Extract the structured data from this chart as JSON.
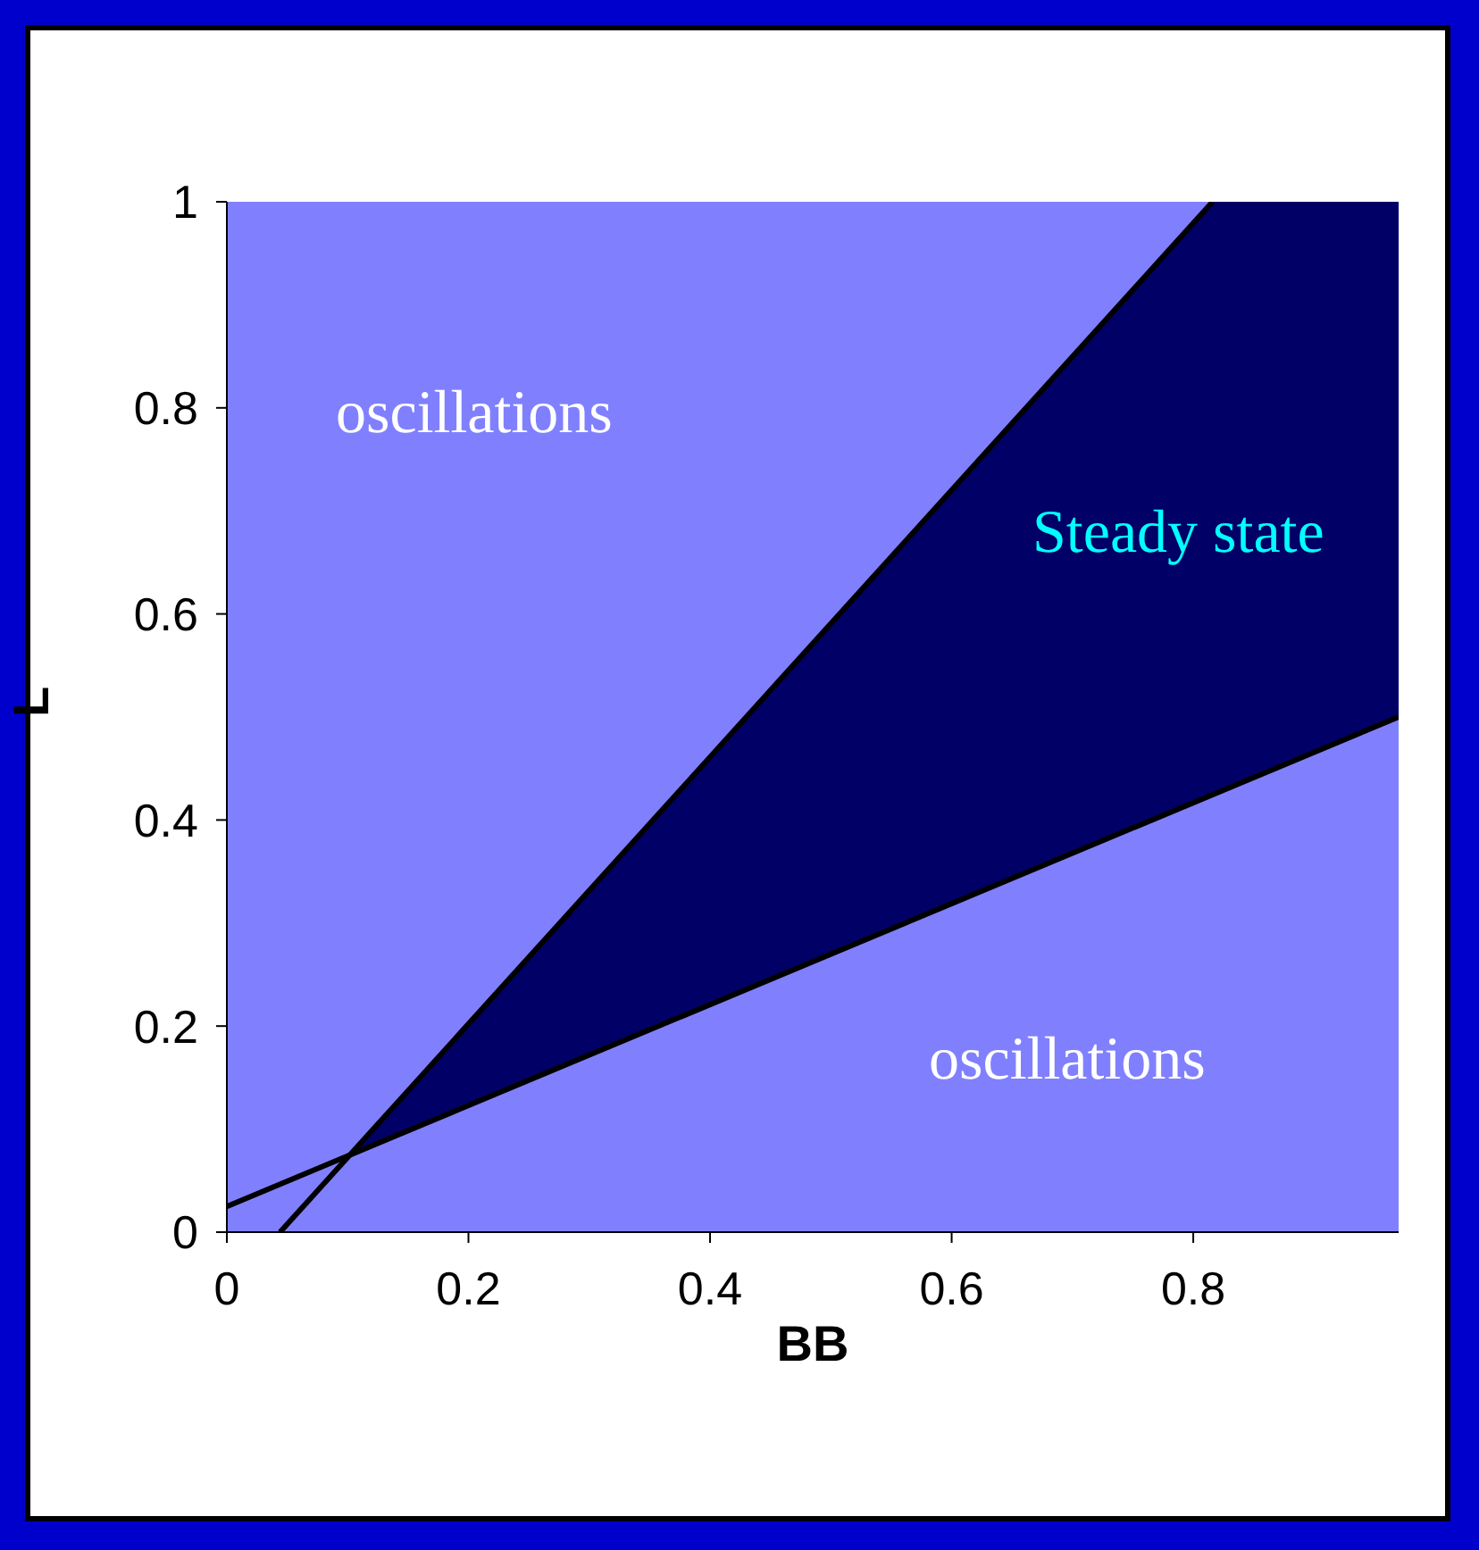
{
  "chart_data": {
    "type": "line",
    "xlabel": "BB",
    "ylabel": "L",
    "xlim": [
      0,
      0.97
    ],
    "xticks": [
      0,
      0.2,
      0.4,
      0.6,
      0.8
    ],
    "ylim": [
      0,
      1
    ],
    "yticks": [
      0,
      0.2,
      0.4,
      0.6,
      0.8,
      1
    ],
    "series": [
      {
        "type": "area",
        "color": "#000066",
        "x": [
          0.105,
          0.816,
          0.97
        ],
        "values": [
          0.08,
          1,
          1
        ]
      },
      {
        "type": "area",
        "color": "#8080ff",
        "x": [
          0,
          0.97
        ],
        "values": [
          0.025,
          0.5
        ]
      },
      {
        "color": "#000000",
        "x": [
          0.044,
          0.816
        ],
        "values": [
          0,
          1
        ]
      }
    ],
    "annotations": [
      "oscillations",
      "Steady state",
      "oscillations"
    ],
    "grid": false,
    "legend": false,
    "marker": "none"
  }
}
